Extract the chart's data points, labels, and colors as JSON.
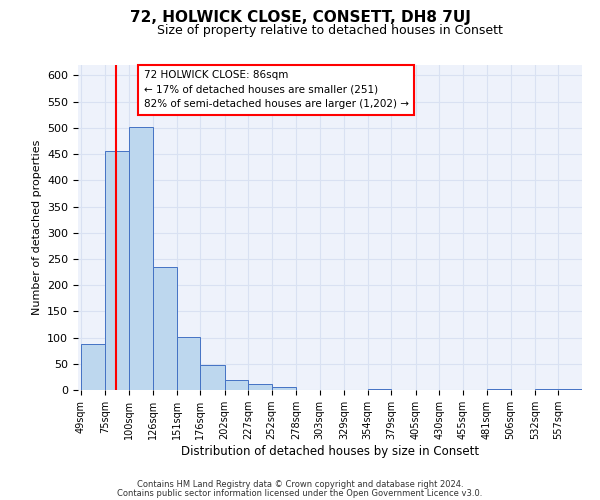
{
  "title": "72, HOLWICK CLOSE, CONSETT, DH8 7UJ",
  "subtitle": "Size of property relative to detached houses in Consett",
  "xlabel": "Distribution of detached houses by size in Consett",
  "ylabel": "Number of detached properties",
  "bar_labels": [
    "49sqm",
    "75sqm",
    "100sqm",
    "126sqm",
    "151sqm",
    "176sqm",
    "202sqm",
    "227sqm",
    "252sqm",
    "278sqm",
    "303sqm",
    "329sqm",
    "354sqm",
    "379sqm",
    "405sqm",
    "430sqm",
    "455sqm",
    "481sqm",
    "506sqm",
    "532sqm",
    "557sqm"
  ],
  "bar_values": [
    88,
    455,
    502,
    235,
    102,
    47,
    20,
    12,
    5,
    0,
    0,
    0,
    2,
    0,
    0,
    0,
    0,
    2,
    0,
    2,
    2
  ],
  "bar_color": "#bdd7ee",
  "bar_edge_color": "#4472c4",
  "property_line_x": 86,
  "bin_edges": [
    49,
    75,
    100,
    126,
    151,
    176,
    202,
    227,
    252,
    278,
    303,
    329,
    354,
    379,
    405,
    430,
    455,
    481,
    506,
    532,
    557,
    582
  ],
  "annotation_line1": "72 HOLWICK CLOSE: 86sqm",
  "annotation_line2": "← 17% of detached houses are smaller (251)",
  "annotation_line3": "82% of semi-detached houses are larger (1,202) →",
  "grid_color": "#d9e1f2",
  "ylim": [
    0,
    620
  ],
  "yticks": [
    0,
    50,
    100,
    150,
    200,
    250,
    300,
    350,
    400,
    450,
    500,
    550,
    600
  ],
  "footer_line1": "Contains HM Land Registry data © Crown copyright and database right 2024.",
  "footer_line2": "Contains public sector information licensed under the Open Government Licence v3.0.",
  "bg_color": "#ffffff",
  "plot_bg_color": "#eef2fb"
}
